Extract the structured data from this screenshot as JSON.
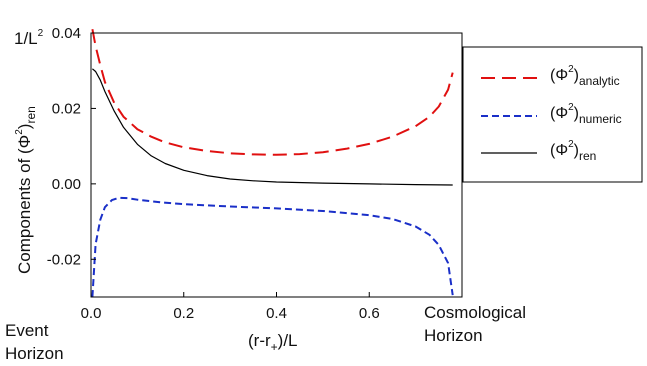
{
  "chart_data": {
    "type": "line",
    "xlabel": {
      "base": "(r-r",
      "sub": "+",
      "tail": ")/L"
    },
    "ylabel": {
      "base": "Components of (Φ",
      "sup": "2",
      "tail": ")",
      "sub": "ren"
    },
    "yunit": {
      "base": "1/L",
      "sup": "2"
    },
    "xlim": [
      0,
      0.8
    ],
    "ylim": [
      -0.03,
      0.04
    ],
    "xticks": [
      "0.0",
      "0.2",
      "0.4",
      "0.6"
    ],
    "xtick_values": [
      0.0,
      0.2,
      0.4,
      0.6
    ],
    "yticks": [
      "0.04",
      "0.02",
      "0.00",
      "-0.02"
    ],
    "ytick_values": [
      0.04,
      0.02,
      0.0,
      -0.02
    ],
    "annotations": {
      "left": [
        "Event",
        "Horizon"
      ],
      "right": [
        "Cosmological",
        "Horizon"
      ]
    },
    "legend_position": "right",
    "series": [
      {
        "name": {
          "base": "(Φ",
          "sup": "2",
          "tail": ")",
          "sub": "analytic"
        },
        "color": "#e01010",
        "dash": "long-dash",
        "x": [
          0.003,
          0.01,
          0.02,
          0.03,
          0.05,
          0.07,
          0.1,
          0.13,
          0.16,
          0.2,
          0.25,
          0.3,
          0.35,
          0.4,
          0.45,
          0.5,
          0.55,
          0.6,
          0.65,
          0.7,
          0.73,
          0.75,
          0.77,
          0.78
        ],
        "y": [
          0.041,
          0.0365,
          0.0315,
          0.027,
          0.0215,
          0.0178,
          0.0145,
          0.0125,
          0.011,
          0.0097,
          0.0087,
          0.0081,
          0.0078,
          0.0077,
          0.0079,
          0.0084,
          0.0093,
          0.0106,
          0.0125,
          0.0153,
          0.0178,
          0.0205,
          0.025,
          0.0295
        ]
      },
      {
        "name": {
          "base": "(Φ",
          "sup": "2",
          "tail": ")",
          "sub": "numeric"
        },
        "color": "#1a2fc8",
        "dash": "short-dash",
        "x": [
          0.003,
          0.01,
          0.02,
          0.03,
          0.045,
          0.06,
          0.08,
          0.1,
          0.15,
          0.2,
          0.3,
          0.4,
          0.5,
          0.6,
          0.65,
          0.7,
          0.73,
          0.75,
          0.77,
          0.78
        ],
        "y": [
          -0.03,
          -0.016,
          -0.0095,
          -0.0062,
          -0.0043,
          -0.0037,
          -0.0038,
          -0.0042,
          -0.0049,
          -0.0054,
          -0.006,
          -0.0065,
          -0.0072,
          -0.0083,
          -0.0093,
          -0.0113,
          -0.0135,
          -0.0162,
          -0.021,
          -0.0295
        ]
      },
      {
        "name": {
          "base": "(Φ",
          "sup": "2",
          "tail": ")",
          "sub": "ren"
        },
        "color": "#000000",
        "dash": "solid",
        "x": [
          0.003,
          0.01,
          0.02,
          0.03,
          0.05,
          0.07,
          0.1,
          0.13,
          0.16,
          0.2,
          0.25,
          0.3,
          0.35,
          0.4,
          0.5,
          0.6,
          0.7,
          0.78
        ],
        "y": [
          0.0305,
          0.0298,
          0.0275,
          0.0245,
          0.0193,
          0.015,
          0.0105,
          0.0074,
          0.0054,
          0.0036,
          0.0022,
          0.0013,
          0.0008,
          0.0005,
          0.0002,
          0.0,
          -0.0002,
          -0.0003
        ]
      }
    ]
  }
}
